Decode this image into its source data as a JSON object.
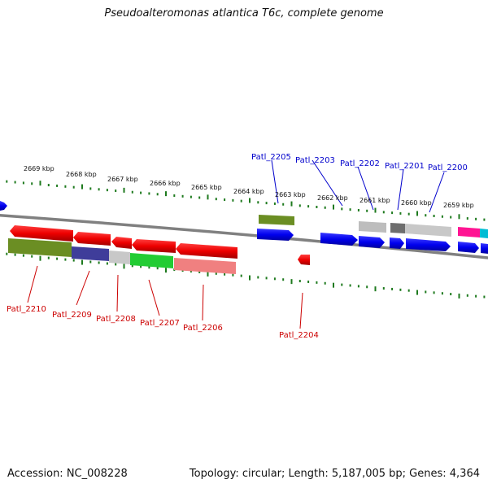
{
  "title": "Pseudoalteromonas atlantica T6c, complete genome",
  "footer": {
    "accession": "Accession: NC_008228",
    "stats": "Topology: circular; Length: 5,187,005 bp; Genes: 4,364"
  },
  "colors": {
    "backbone": "#808080",
    "tick": "#1e7a1e",
    "plus_label": "#0000cc",
    "minus_label": "#cc0000",
    "blue": "#0000ee",
    "red": "#ee0000"
  },
  "tick_labels": [
    "2669 kbp",
    "2668 kbp",
    "2667 kbp",
    "2666 kbp",
    "2665 kbp",
    "2664 kbp",
    "2663 kbp",
    "2662 kbp",
    "2661 kbp",
    "2660 kbp",
    "2659 kbp"
  ],
  "plus_strand_labels": [
    "Patl_2205",
    "Patl_2203",
    "Patl_2202",
    "Patl_2201",
    "Patl_2200"
  ],
  "minus_strand_labels": [
    "Patl_2210",
    "Patl_2209",
    "Patl_2208",
    "Patl_2207",
    "Patl_2206",
    "Patl_2204"
  ]
}
